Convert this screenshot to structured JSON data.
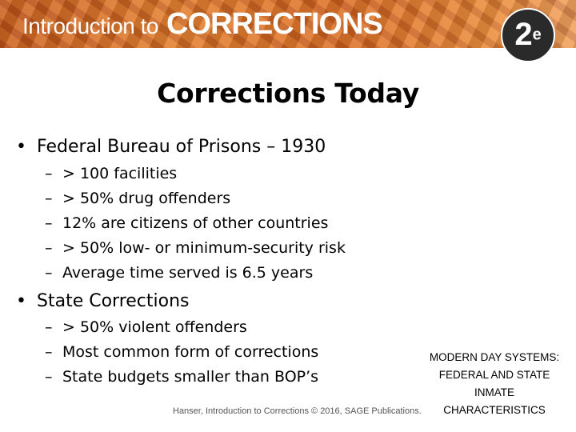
{
  "banner": {
    "title_intro": "Introduction to",
    "title_main": "CORRECTIONS",
    "edition_number": "2",
    "edition_suffix": "e"
  },
  "slide": {
    "title": "Corrections Today",
    "bullets": [
      {
        "text": "Federal Bureau of Prisons – 1930",
        "subitems": [
          "> 100 facilities",
          "> 50% drug offenders",
          "12% are citizens of other countries",
          "> 50% low- or minimum-security risk",
          "Average time served is 6.5 years"
        ]
      },
      {
        "text": "State Corrections",
        "subitems": [
          "> 50% violent offenders",
          "Most common form of corrections",
          "State budgets smaller than BOP’s"
        ]
      }
    ],
    "bullet_glyph": "•",
    "sub_glyph": "–",
    "side_note": [
      "MODERN DAY SYSTEMS:",
      "FEDERAL AND STATE",
      "INMATE",
      "CHARACTERISTICS"
    ],
    "footer": "Hanser, Introduction to Corrections © 2016, SAGE Publications."
  },
  "colors": {
    "banner_orange": "#e07a2c",
    "badge_dark": "#2a2a2a",
    "text": "#000000"
  }
}
